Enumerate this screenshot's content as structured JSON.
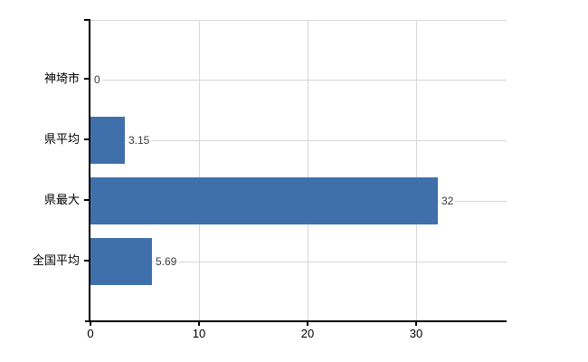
{
  "chart": {
    "background": "#ffffff",
    "bar_color": "#4070ab",
    "grid_color": "#d8d8d8",
    "axis_color": "#000000",
    "category_label_color": "#000000",
    "value_label_color": "#3a3a3a"
  },
  "chart_data": {
    "type": "bar",
    "orientation": "horizontal",
    "title": "",
    "xlabel": "",
    "ylabel": "",
    "categories": [
      "神埼市",
      "県平均",
      "県最大",
      "全国平均"
    ],
    "values": [
      0,
      3.15,
      32,
      5.69
    ],
    "value_labels": [
      "0",
      "3.15",
      "32",
      "5.69"
    ],
    "x_tick_values": [
      0,
      10,
      20,
      30
    ],
    "x_tick_labels": [
      "0",
      "10",
      "20",
      "30"
    ],
    "xlim": [
      0,
      38.33
    ],
    "grid": true,
    "legend": false
  }
}
